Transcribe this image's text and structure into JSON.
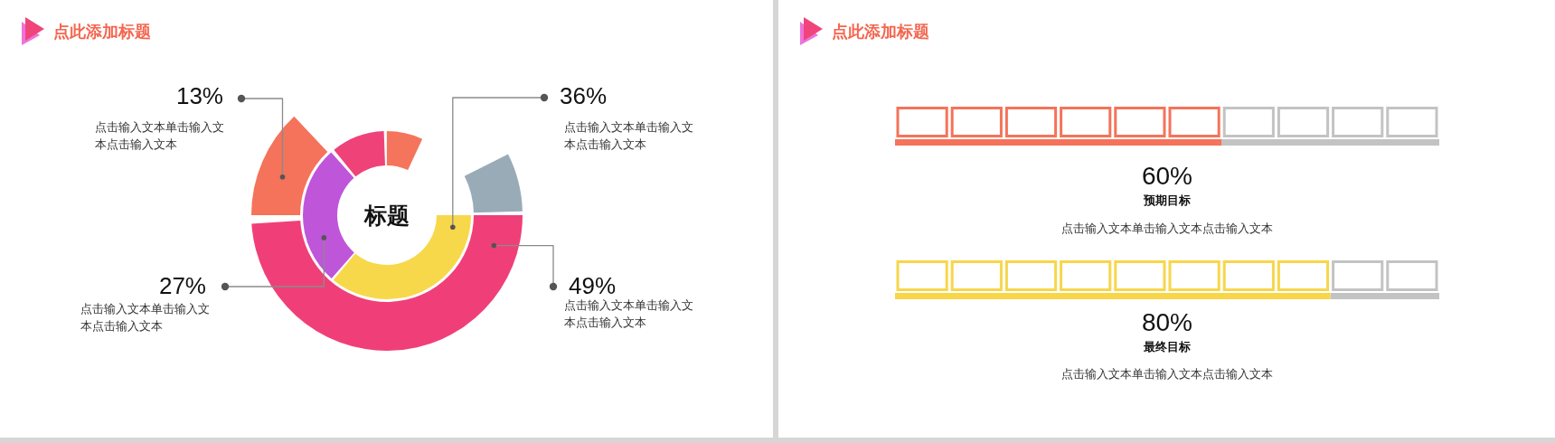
{
  "chart_data": [
    {
      "type": "other",
      "title": "点此添加标题",
      "subtitle": "标题",
      "categories": [
        "点击输入文本单击输入文本点击输入文本",
        "点击输入文本单击输入文本点击输入文本",
        "点击输入文本单击输入文本点击输入文本",
        "点击输入文本单击输入文本点击输入文本"
      ],
      "values": [
        13,
        36,
        27,
        49
      ],
      "value_labels": [
        "13%",
        "36%",
        "27%",
        "49%"
      ],
      "colors": [
        "#f4735a",
        "#f7d84a",
        "#bf55d9",
        "#f03f78"
      ]
    },
    {
      "type": "bar",
      "orientation": "horizontal",
      "title": "点此添加标题",
      "categories": [
        "预期目标",
        "最终目标"
      ],
      "values": [
        60,
        80
      ],
      "value_labels": [
        "60%",
        "80%"
      ],
      "colors": [
        "#f4735a",
        "#f7d64a"
      ],
      "xlim": [
        0,
        100
      ],
      "annotations": [
        "点击输入文本单击输入文本点击输入文本",
        "点击输入文本单击输入文本点击输入文本"
      ]
    }
  ]
}
